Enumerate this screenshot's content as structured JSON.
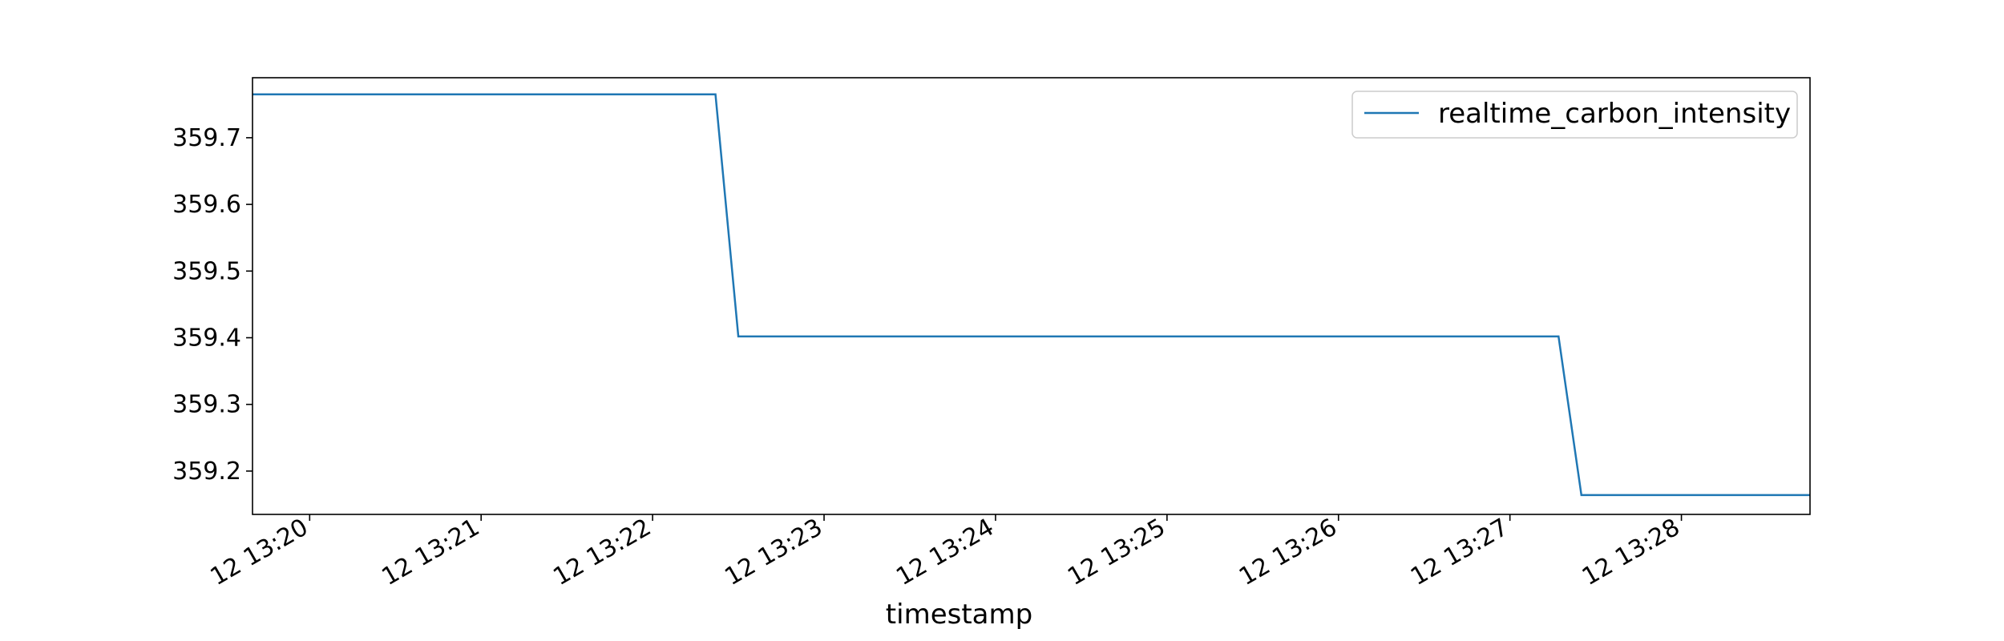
{
  "chart_data": {
    "type": "line",
    "xlabel": "timestamp",
    "ylabel": "",
    "x_start": "12 13:19:40",
    "x_end": "12 13:28:45",
    "ylim": [
      359.135,
      359.79
    ],
    "x_ticks": [
      "12 13:20",
      "12 13:21",
      "12 13:22",
      "12 13:23",
      "12 13:24",
      "12 13:25",
      "12 13:26",
      "12 13:27",
      "12 13:28"
    ],
    "y_ticks": [
      "359.2",
      "359.3",
      "359.4",
      "359.5",
      "359.6",
      "359.7"
    ],
    "legend": {
      "position": "top-right"
    },
    "grid": false,
    "series": [
      {
        "name": "realtime_carbon_intensity",
        "color": "#1f77b4",
        "points": [
          {
            "x": "12 13:19:40",
            "y": 359.765
          },
          {
            "x": "12 13:22:22",
            "y": 359.765
          },
          {
            "x": "12 13:22:30",
            "y": 359.402
          },
          {
            "x": "12 13:27:17",
            "y": 359.402
          },
          {
            "x": "12 13:27:25",
            "y": 359.164
          },
          {
            "x": "12 13:28:45",
            "y": 359.164
          }
        ]
      }
    ]
  }
}
